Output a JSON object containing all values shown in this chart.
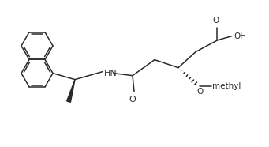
{
  "bg": "#ffffff",
  "lc": "#2a2a2a",
  "lw": 1.1,
  "fs": 7.5,
  "fig_w": 3.41,
  "fig_h": 1.86,
  "dpi": 100,
  "bl": 20
}
